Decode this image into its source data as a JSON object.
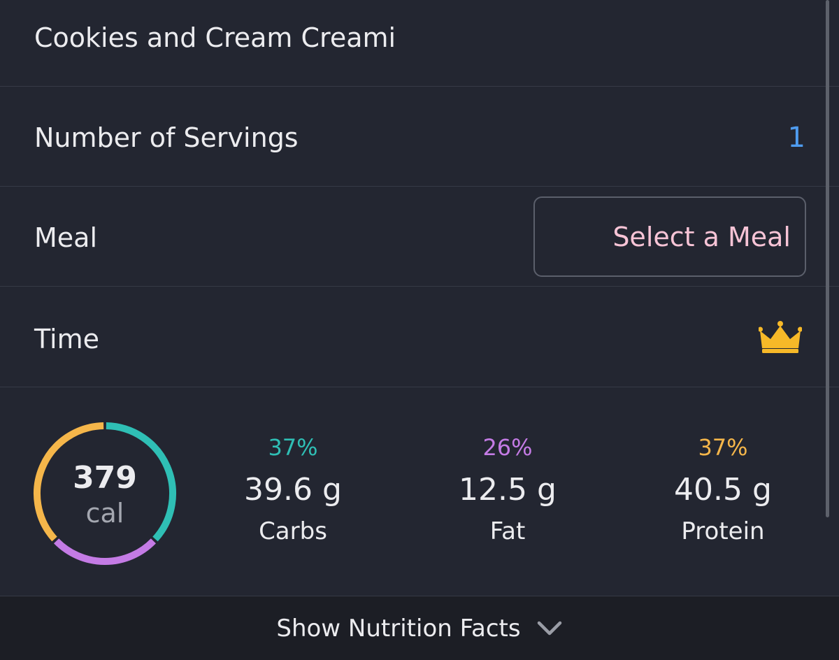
{
  "food": {
    "name": "Cookies and Cream Creami"
  },
  "servings": {
    "label": "Number of Servings",
    "value": "1"
  },
  "meal": {
    "label": "Meal",
    "select_label": "Select a Meal"
  },
  "time": {
    "label": "Time",
    "premium_icon": "crown-icon"
  },
  "calories": {
    "value": "379",
    "unit": "cal"
  },
  "macros": [
    {
      "percent": "37%",
      "percent_value": 37,
      "amount": "39.6 g",
      "name": "Carbs",
      "color": "#2fbfb5"
    },
    {
      "percent": "26%",
      "percent_value": 26,
      "amount": "12.5 g",
      "name": "Fat",
      "color": "#c47be5"
    },
    {
      "percent": "37%",
      "percent_value": 37,
      "amount": "40.5 g",
      "name": "Protein",
      "color": "#f5b64a"
    }
  ],
  "footer": {
    "label": "Show Nutrition Facts",
    "icon": "chevron-down-icon"
  },
  "colors": {
    "background": "#232631",
    "accent_blue": "#4f9cf0",
    "meal_pink": "#f7c4d6",
    "crown_gold": "#f7b928"
  }
}
